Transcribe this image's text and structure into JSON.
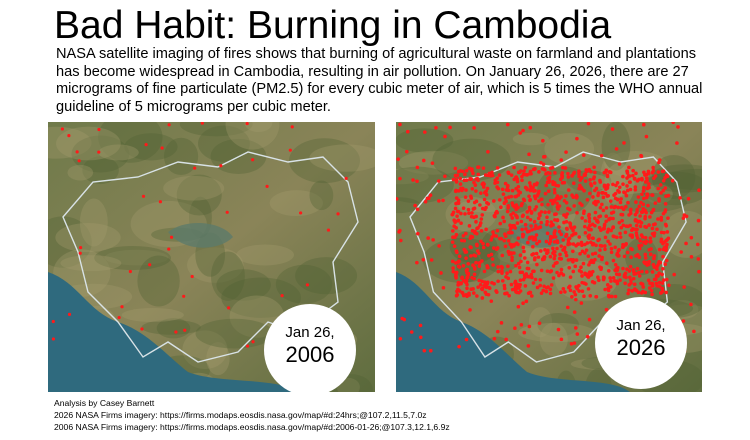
{
  "header": {
    "title": "Bad Habit: Burning in Cambodia",
    "description": "NASA satellite imaging of fires shows that burning of agricultural waste on farmland and plantations has become widespread in Cambodia, resulting in air pollution. On January 26, 2026, there are 27 micrograms of fine particulate (PM2.5) for every cubic meter of air, which is 5 times the WHO annual guideline of 5 micrograms per cubic meter."
  },
  "panels": [
    {
      "date": "Jan 26,",
      "year": "2006"
    },
    {
      "date": "Jan 26,",
      "year": "2026"
    }
  ],
  "footer": {
    "credit": "Analysis by Casey Barnett",
    "sources": [
      "2026 NASA Firms imagery: https://firms.modaps.eosdis.nasa.gov/map/#d:24hrs;@107.2,11.5,7.0z",
      "2006 NASA Firms imagery: https://firms.modaps.eosdis.nasa.gov/map/#d:2006-01-26;@107.3,12.1,6.9z"
    ]
  }
}
